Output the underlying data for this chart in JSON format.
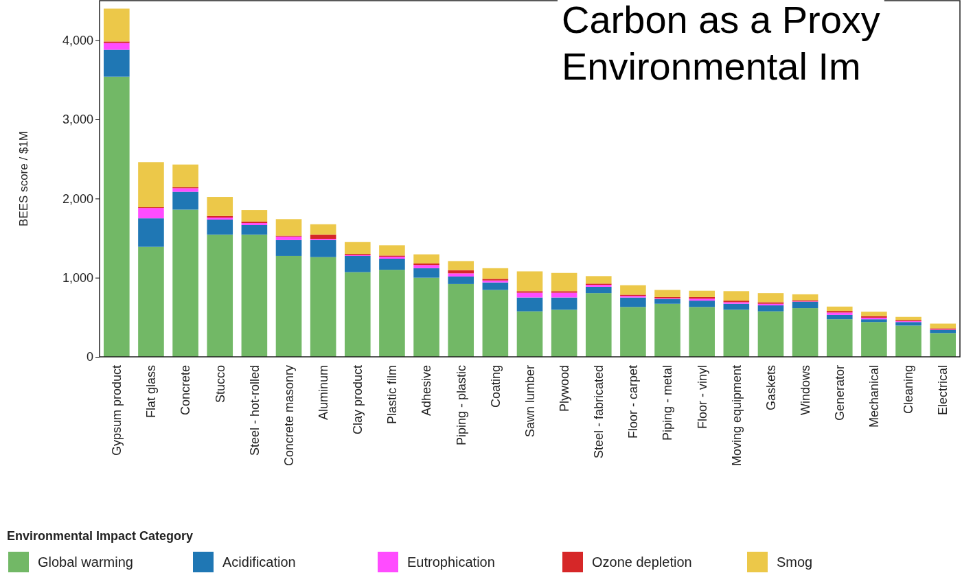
{
  "chart_data": {
    "type": "bar",
    "stacked": true,
    "title": "Carbon as a Proxy",
    "subtitle": "Environmental Im",
    "ylabel": "BEES score / $1M",
    "legend_title": "Environmental Impact Category",
    "legend": "bottom",
    "grid": false,
    "categories": [
      "Gypsum product",
      "Flat glass",
      "Concrete",
      "Stucco",
      "Steel - hot-rolled",
      "Concrete masonry",
      "Aluminum",
      "Clay product",
      "Plastic film",
      "Adhesive",
      "Piping - plastic",
      "Coating",
      "Sawn lumber",
      "Plywood",
      "Steel - fabricated",
      "Floor - carpet",
      "Piping - metal",
      "Floor - vinyl",
      "Moving equipment",
      "Gaskets",
      "Windows",
      "Generator",
      "Mechanical",
      "Cleaning",
      "Electrical"
    ],
    "ylim": [
      0,
      4500
    ],
    "yticks": [
      {
        "value": 0,
        "label": "0"
      },
      {
        "value": 1000,
        "label": "1,000"
      },
      {
        "value": 2000,
        "label": "2,000"
      },
      {
        "value": 3000,
        "label": "3,000"
      },
      {
        "value": 4000,
        "label": "4,000"
      }
    ],
    "series": [
      {
        "name": "Global warming",
        "color": "#72b866",
        "values": [
          3540,
          1390,
          1860,
          1545,
          1545,
          1275,
          1260,
          1070,
          1100,
          1000,
          920,
          845,
          575,
          595,
          805,
          630,
          670,
          630,
          595,
          575,
          615,
          475,
          440,
          395,
          300
        ]
      },
      {
        "name": "Acidification",
        "color": "#1f77b4",
        "values": [
          340,
          360,
          225,
          190,
          120,
          200,
          215,
          205,
          140,
          120,
          95,
          95,
          175,
          155,
          80,
          120,
          60,
          80,
          75,
          75,
          80,
          55,
          35,
          45,
          40
        ]
      },
      {
        "name": "Eutrophication",
        "color": "#ff4cff",
        "values": [
          85,
          130,
          45,
          25,
          25,
          45,
          15,
          10,
          25,
          40,
          40,
          25,
          60,
          60,
          25,
          20,
          10,
          25,
          20,
          20,
          5,
          30,
          20,
          10,
          5
        ]
      },
      {
        "name": "Ozone depletion",
        "color": "#d62728",
        "values": [
          20,
          10,
          15,
          20,
          20,
          10,
          55,
          15,
          15,
          20,
          40,
          20,
          20,
          20,
          15,
          15,
          15,
          20,
          20,
          20,
          15,
          20,
          20,
          15,
          15
        ]
      },
      {
        "name": "Smog",
        "color": "#ecc849",
        "values": [
          415,
          570,
          285,
          240,
          145,
          210,
          130,
          150,
          130,
          115,
          115,
          135,
          250,
          230,
          95,
          120,
          90,
          80,
          120,
          115,
          75,
          55,
          55,
          40,
          60
        ]
      }
    ]
  }
}
